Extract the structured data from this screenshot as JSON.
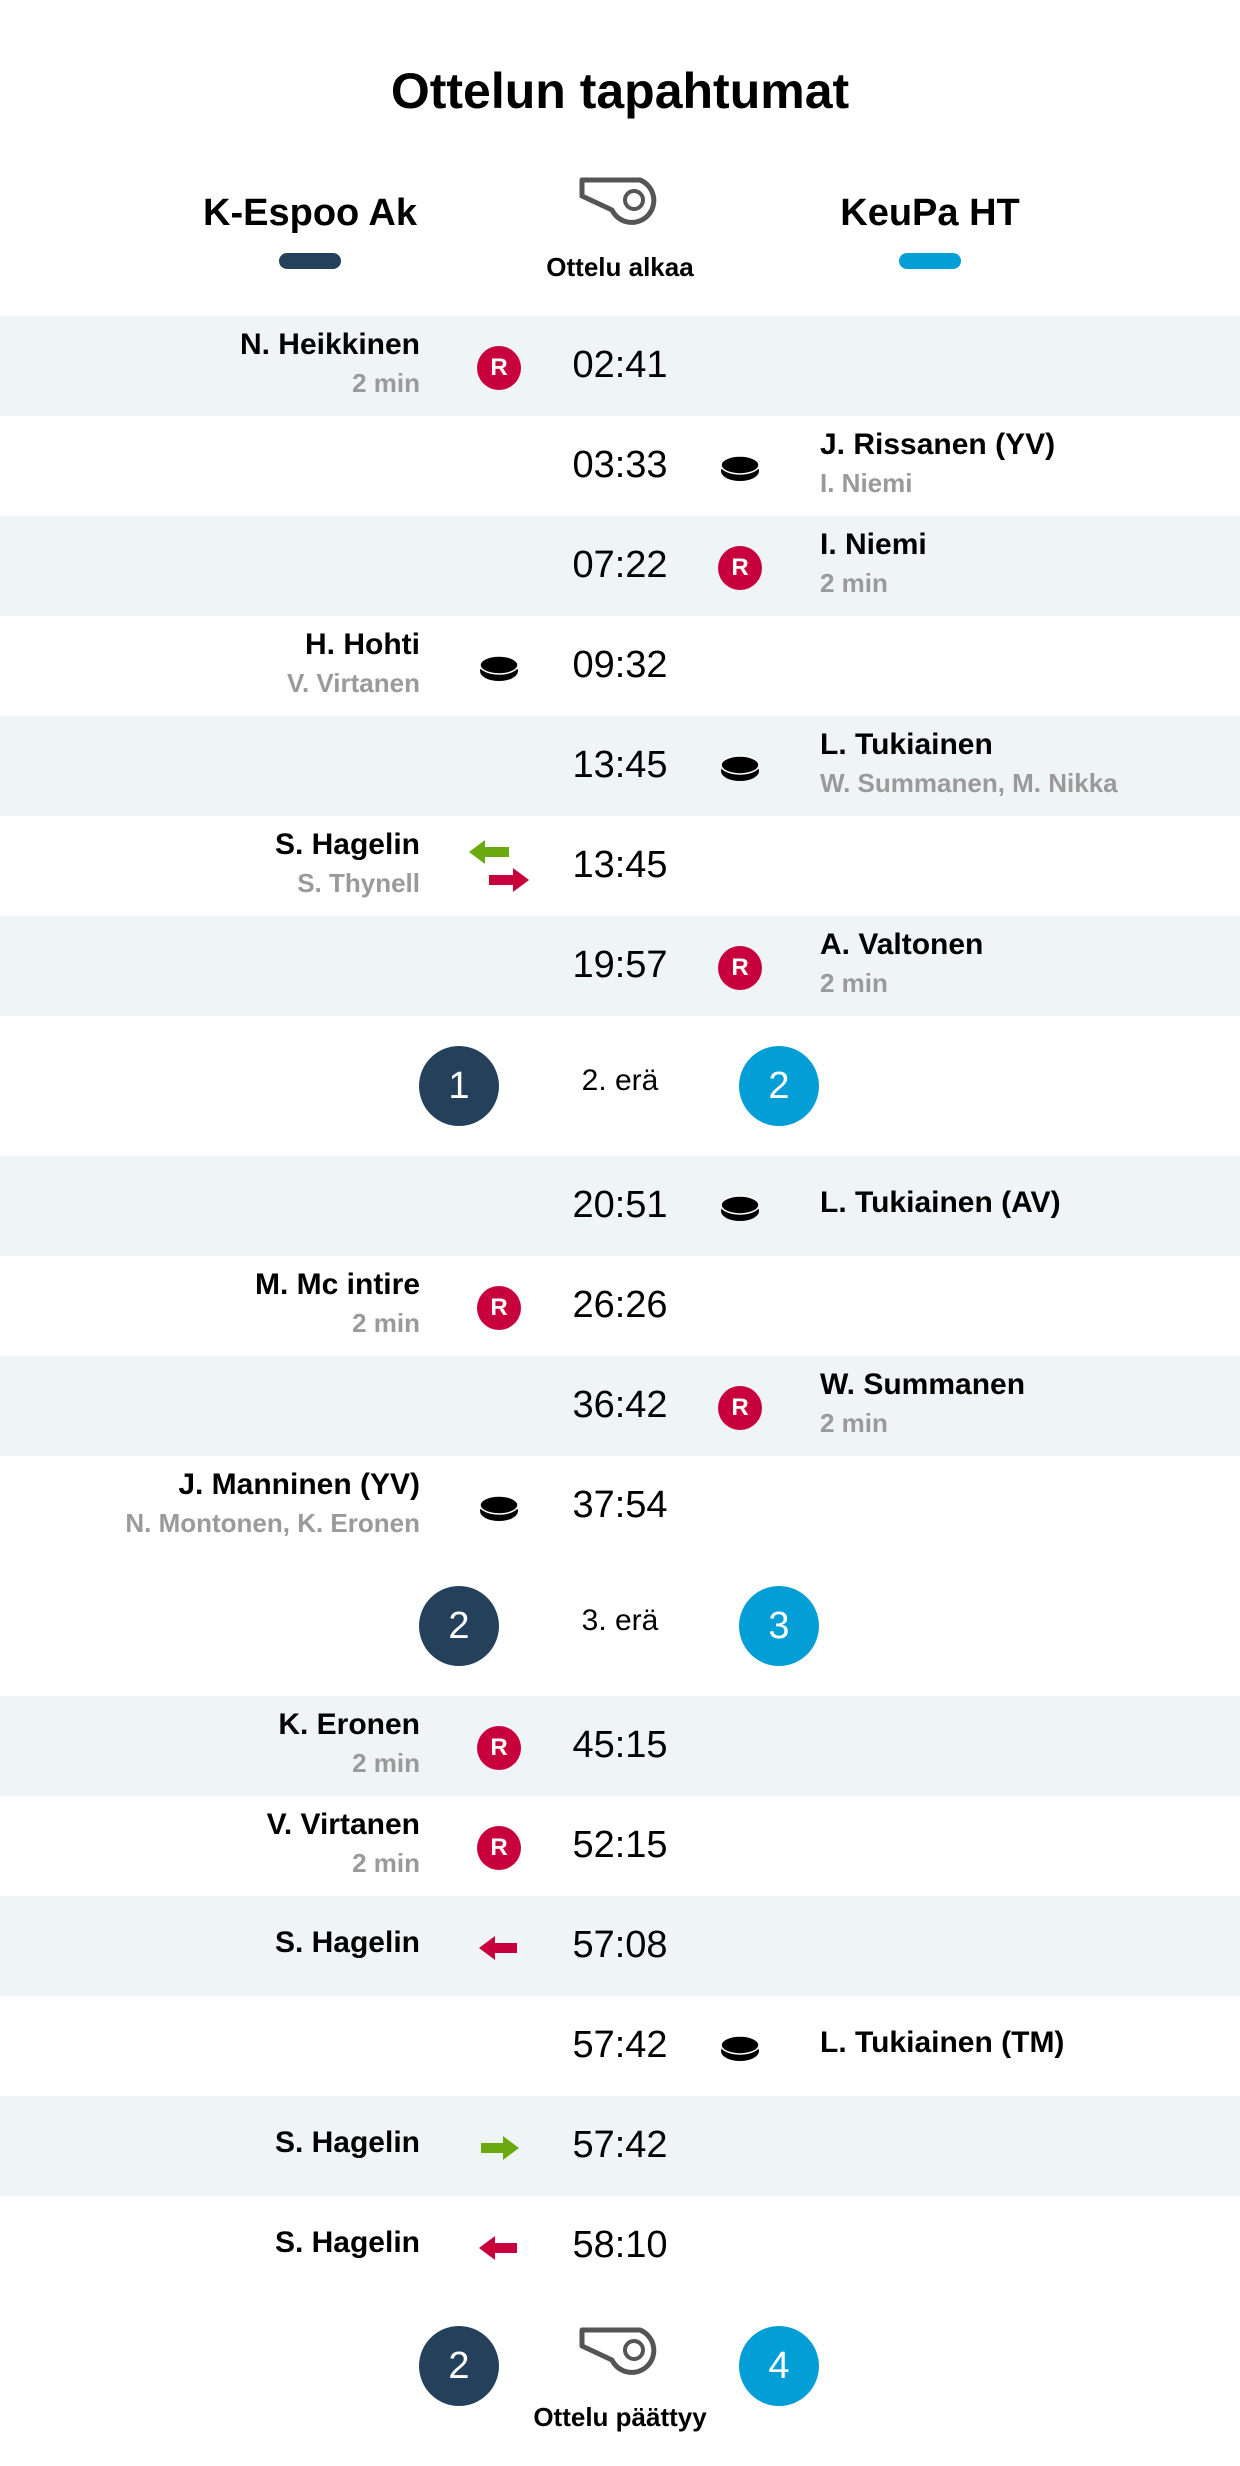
{
  "title": "Ottelun tapahtumat",
  "home": {
    "name": "K-Espoo Ak",
    "color": "#24405a"
  },
  "away": {
    "name": "KeuPa HT",
    "color": "#049ed6"
  },
  "start_label": "Ottelu alkaa",
  "end_label": "Ottelu päättyy",
  "final_score": {
    "home": "2",
    "away": "4"
  },
  "periods": [
    {
      "events": [
        {
          "side": "home",
          "type": "penalty",
          "time": "02:41",
          "name": "N. Heikkinen",
          "sub": "2 min"
        },
        {
          "side": "away",
          "type": "goal",
          "time": "03:33",
          "name": "J. Rissanen (YV)",
          "sub": "I. Niemi"
        },
        {
          "side": "away",
          "type": "penalty",
          "time": "07:22",
          "name": "I. Niemi",
          "sub": "2 min"
        },
        {
          "side": "home",
          "type": "goal",
          "time": "09:32",
          "name": "H. Hohti",
          "sub": "V. Virtanen"
        },
        {
          "side": "away",
          "type": "goal",
          "time": "13:45",
          "name": "L. Tukiainen",
          "sub": "W. Summanen, M. Nikka"
        },
        {
          "side": "home",
          "type": "goalie-change",
          "time": "13:45",
          "name": "S. Hagelin",
          "sub": "S. Thynell"
        },
        {
          "side": "away",
          "type": "penalty",
          "time": "19:57",
          "name": "A. Valtonen",
          "sub": "2 min"
        }
      ],
      "after": {
        "label": "2. erä",
        "home": "1",
        "away": "2"
      }
    },
    {
      "events": [
        {
          "side": "away",
          "type": "goal",
          "time": "20:51",
          "name": "L. Tukiainen (AV)",
          "sub": ""
        },
        {
          "side": "home",
          "type": "penalty",
          "time": "26:26",
          "name": "M. Mc intire",
          "sub": "2 min"
        },
        {
          "side": "away",
          "type": "penalty",
          "time": "36:42",
          "name": "W. Summanen",
          "sub": "2 min"
        },
        {
          "side": "home",
          "type": "goal",
          "time": "37:54",
          "name": "J. Manninen (YV)",
          "sub": "N. Montonen, K. Eronen"
        }
      ],
      "after": {
        "label": "3. erä",
        "home": "2",
        "away": "3"
      }
    },
    {
      "events": [
        {
          "side": "home",
          "type": "penalty",
          "time": "45:15",
          "name": "K. Eronen",
          "sub": "2 min"
        },
        {
          "side": "home",
          "type": "penalty",
          "time": "52:15",
          "name": "V. Virtanen",
          "sub": "2 min"
        },
        {
          "side": "home",
          "type": "goalie-out",
          "time": "57:08",
          "name": "S. Hagelin",
          "sub": ""
        },
        {
          "side": "away",
          "type": "goal",
          "time": "57:42",
          "name": "L. Tukiainen (TM)",
          "sub": ""
        },
        {
          "side": "home",
          "type": "goalie-in",
          "time": "57:42",
          "name": "S. Hagelin",
          "sub": ""
        },
        {
          "side": "home",
          "type": "goalie-out",
          "time": "58:10",
          "name": "S. Hagelin",
          "sub": ""
        }
      ]
    }
  ],
  "icons": {
    "penalty": "R",
    "goal": "puck-icon",
    "whistle": "whistle-icon"
  }
}
